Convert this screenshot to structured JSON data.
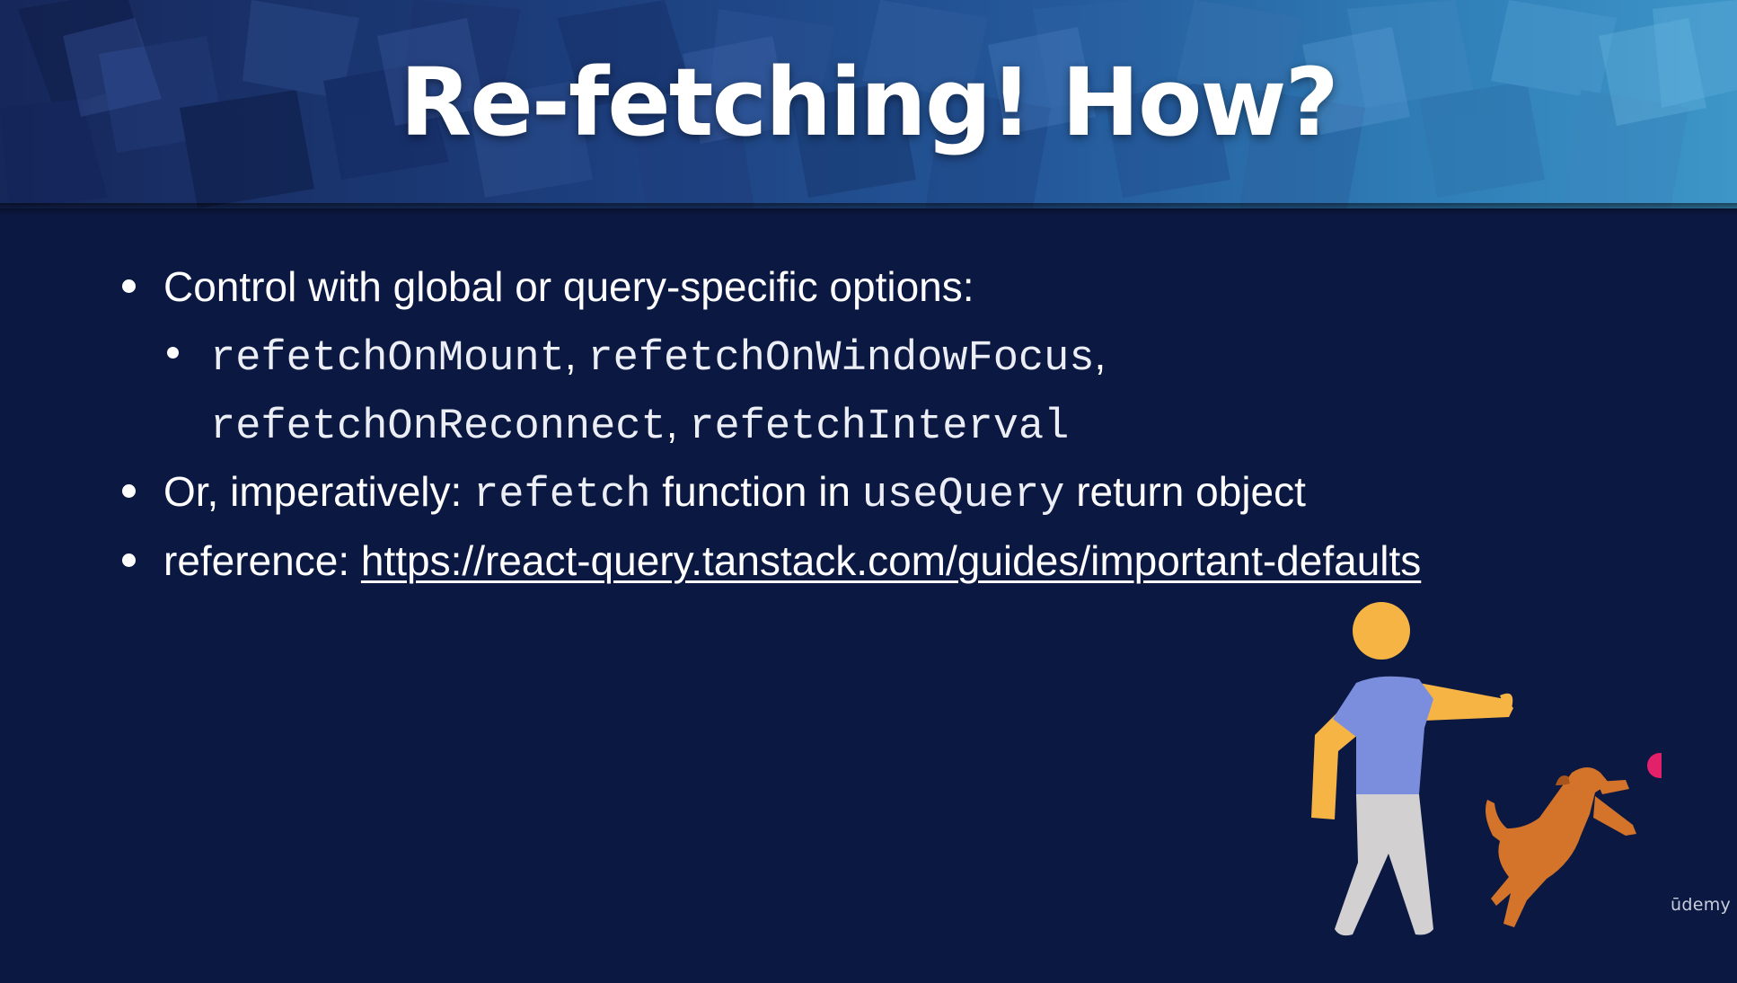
{
  "slide": {
    "title": "Re-fetching! How?",
    "bullets": {
      "b1": {
        "text": "Control with global or query-specific options:"
      },
      "b1_sub": {
        "opt1": "refetchOnMount",
        "sep1": ", ",
        "opt2": "refetchOnWindowFocus",
        "sep2": ",",
        "opt3": "refetchOnReconnect",
        "sep3": ", ",
        "opt4": "refetchInterval"
      },
      "b2": {
        "prefix": "Or, imperatively: ",
        "code1": "refetch",
        "middle": " function in ",
        "code2": "useQuery",
        "suffix": " return object"
      },
      "b3": {
        "prefix": "reference: ",
        "link": "https://react-query.tanstack.com/guides/important-defaults"
      }
    },
    "brand": "ūdemy",
    "colors": {
      "background": "#0b1842",
      "text": "#ffffff",
      "person_head": "#f6b445",
      "person_shirt": "#7b8ede",
      "person_pants": "#d3d0d2",
      "dog": "#d3742a",
      "ball": "#e3206a"
    },
    "illustration_icons": [
      "person-icon",
      "dog-icon",
      "ball-icon"
    ]
  }
}
